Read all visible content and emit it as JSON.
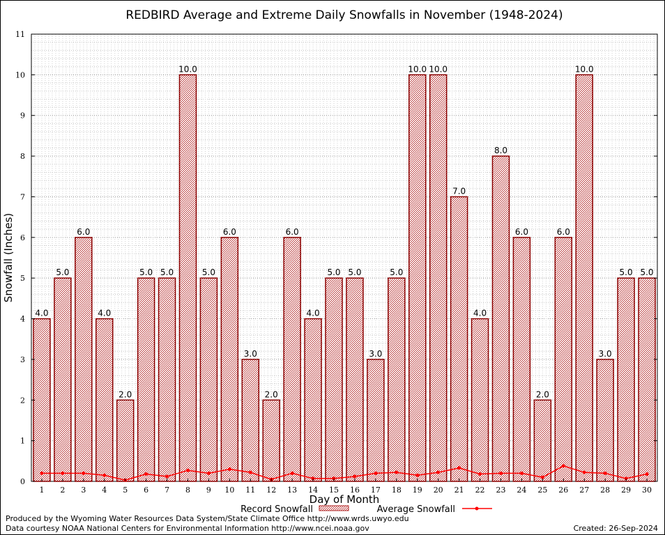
{
  "chart_data": {
    "type": "bar",
    "title": "REDBIRD Average and Extreme Daily Snowfalls in November (1948-2024)",
    "xlabel": "Day of Month",
    "ylabel": "Snowfall (Inches)",
    "ylim": [
      0,
      11
    ],
    "yticks": [
      0,
      1,
      2,
      3,
      4,
      5,
      6,
      7,
      8,
      9,
      10,
      11
    ],
    "categories": [
      "1",
      "2",
      "3",
      "4",
      "5",
      "6",
      "7",
      "8",
      "9",
      "10",
      "11",
      "12",
      "13",
      "14",
      "15",
      "16",
      "17",
      "18",
      "19",
      "20",
      "21",
      "22",
      "23",
      "24",
      "25",
      "26",
      "27",
      "28",
      "29",
      "30"
    ],
    "series": [
      {
        "name": "Record Snowfall",
        "type": "bar",
        "color": "#b22222",
        "values": [
          4.0,
          5.0,
          6.0,
          4.0,
          2.0,
          5.0,
          5.0,
          10.0,
          5.0,
          6.0,
          3.0,
          2.0,
          6.0,
          4.0,
          5.0,
          5.0,
          3.0,
          5.0,
          10.0,
          10.0,
          7.0,
          4.0,
          8.0,
          6.0,
          2.0,
          6.0,
          10.0,
          3.0,
          5.0,
          5.0
        ],
        "labels": [
          "4.0",
          "5.0",
          "6.0",
          "4.0",
          "2.0",
          "5.0",
          "5.0",
          "10.0",
          "5.0",
          "6.0",
          "3.0",
          "2.0",
          "6.0",
          "4.0",
          "5.0",
          "5.0",
          "3.0",
          "5.0",
          "10.0",
          "10.0",
          "7.0",
          "4.0",
          "8.0",
          "6.0",
          "2.0",
          "6.0",
          "10.0",
          "3.0",
          "5.0",
          "5.0"
        ]
      },
      {
        "name": "Average Snowfall",
        "type": "line",
        "color": "#ff0000",
        "values": [
          0.2,
          0.2,
          0.2,
          0.15,
          0.03,
          0.18,
          0.12,
          0.27,
          0.2,
          0.3,
          0.22,
          0.05,
          0.2,
          0.07,
          0.07,
          0.12,
          0.2,
          0.22,
          0.15,
          0.22,
          0.33,
          0.18,
          0.2,
          0.2,
          0.1,
          0.38,
          0.22,
          0.2,
          0.07,
          0.18
        ]
      }
    ],
    "grid": true
  },
  "footer": {
    "producer": "Produced by the Wyoming Water Resources Data System/State Climate Office http://www.wrds.uwyo.edu",
    "courtesy": "Data courtesy NOAA National Centers for Environmental Information http://www.ncei.noaa.gov",
    "created": "Created:  26-Sep-2024"
  }
}
